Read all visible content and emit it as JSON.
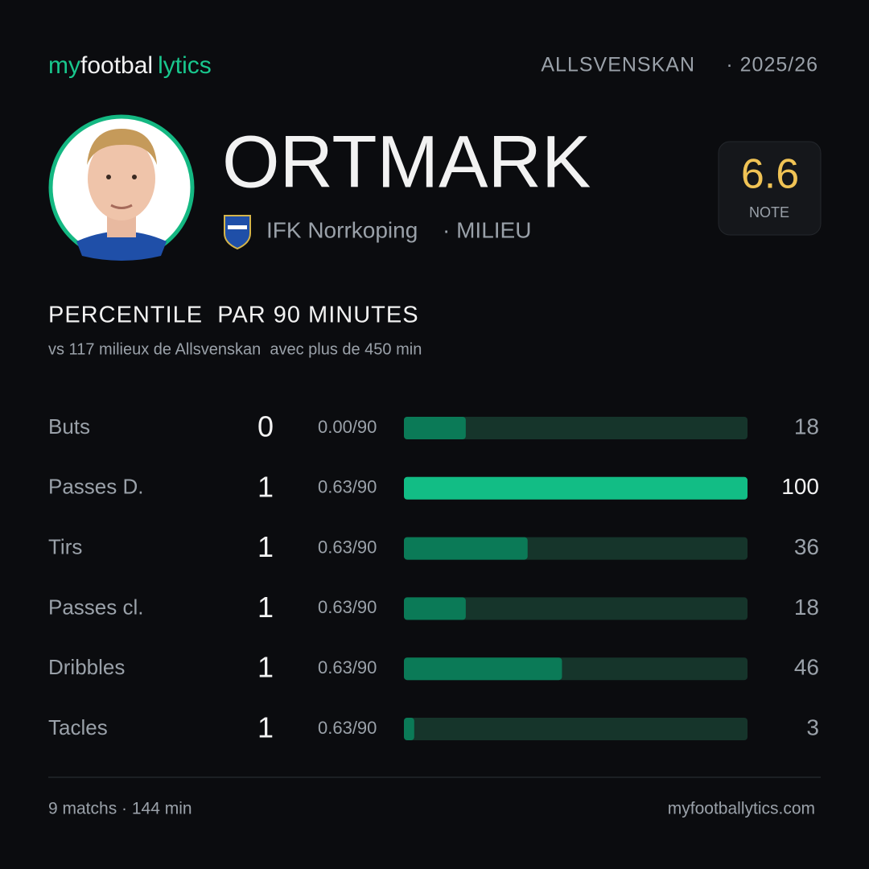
{
  "brand": [
    "my",
    "footbal",
    "lytics"
  ],
  "league": "ALLSVENSKAN",
  "season": "· 2025/26",
  "player": {
    "name": "ORTMARK",
    "club": "IFK Norrkoping",
    "position": "· MILIEU"
  },
  "rating": {
    "value": "6.6",
    "label": "NOTE"
  },
  "section": {
    "title": "PERCENTILE  PAR 90 MINUTES",
    "subtitle": "vs 117 milieux de Allsvenskan  avec plus de 450 min"
  },
  "bar_range": [
    0,
    100
  ],
  "rows": [
    {
      "label": "Buts",
      "count": 0,
      "per90": "0.00/90",
      "percentile": 18
    },
    {
      "label": "Passes D.",
      "count": 1,
      "per90": "0.63/90",
      "percentile": 100
    },
    {
      "label": "Tirs",
      "count": 1,
      "per90": "0.63/90",
      "percentile": 36
    },
    {
      "label": "Passes cl.",
      "count": 1,
      "per90": "0.63/90",
      "percentile": 18
    },
    {
      "label": "Dribbles",
      "count": 1,
      "per90": "0.63/90",
      "percentile": 46
    },
    {
      "label": "Tacles",
      "count": 1,
      "per90": "0.63/90",
      "percentile": 3
    }
  ],
  "footer": {
    "left": "9 matchs · 144 min",
    "right": "myfootballytics.com"
  }
}
